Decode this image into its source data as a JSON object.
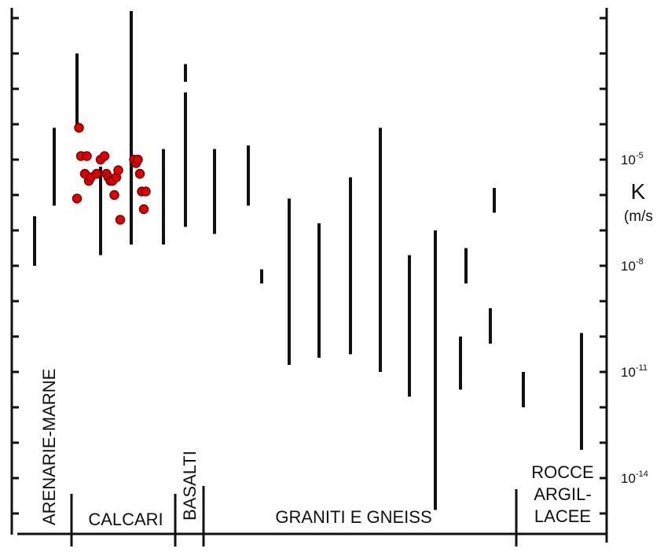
{
  "chart_data": {
    "type": "scatter",
    "title": "",
    "y_axis": {
      "title": "K",
      "unit": "(m/s",
      "scale": "log",
      "ylim_exponent": [
        -16,
        -1
      ],
      "tick_labels": [
        {
          "base": "10",
          "exp": "-5",
          "value_exp": -5
        },
        {
          "base": "10",
          "exp": "-8",
          "value_exp": -8
        },
        {
          "base": "10",
          "exp": "-11",
          "value_exp": -11
        },
        {
          "base": "10",
          "exp": "-14",
          "value_exp": -14
        }
      ]
    },
    "categories": [
      {
        "label": "ARENARIE-MARNE",
        "orientation": "vertical"
      },
      {
        "label": "CALCARI",
        "orientation": "horizontal"
      },
      {
        "label": "BASALTI",
        "orientation": "vertical"
      },
      {
        "label": "GRANITI E GNEISS",
        "orientation": "horizontal"
      },
      {
        "label": "ROCCE ARGIL-LACEE",
        "lines": [
          "ROCCE",
          "ARGIL-",
          "LACEE"
        ],
        "orientation": "horizontal"
      }
    ],
    "ranges_log10_K": [
      {
        "category": "ARENARIE-MARNE",
        "low": -8.0,
        "high": -6.6
      },
      {
        "category": "ARENARIE-MARNE",
        "low": -6.3,
        "high": -4.1
      },
      {
        "category": "CALCARI",
        "low": -4.0,
        "high": -2.0
      },
      {
        "category": "CALCARI",
        "low": -7.7,
        "high": -5.2
      },
      {
        "category": "CALCARI",
        "low": -7.4,
        "high": -0.8
      },
      {
        "category": "CALCARI",
        "low": -7.4,
        "high": -4.7
      },
      {
        "category": "BASALTI",
        "low": -2.8,
        "high": -2.3
      },
      {
        "category": "BASALTI",
        "low": -6.9,
        "high": -3.1
      },
      {
        "category": "GRANITI E GNEISS",
        "low": -7.1,
        "high": -4.7
      },
      {
        "category": "GRANITI E GNEISS",
        "low": -6.3,
        "high": -4.6
      },
      {
        "category": "GRANITI E GNEISS",
        "low": -8.5,
        "high": -8.1
      },
      {
        "category": "GRANITI E GNEISS",
        "low": -10.8,
        "high": -6.1
      },
      {
        "category": "GRANITI E GNEISS",
        "low": -10.6,
        "high": -6.8
      },
      {
        "category": "GRANITI E GNEISS",
        "low": -10.5,
        "high": -5.5
      },
      {
        "category": "GRANITI E GNEISS",
        "low": -11.0,
        "high": -4.1
      },
      {
        "category": "GRANITI E GNEISS",
        "low": -11.7,
        "high": -7.7
      },
      {
        "category": "GRANITI E GNEISS",
        "low": -14.9,
        "high": -7.0
      },
      {
        "category": "GRANITI E GNEISS",
        "low": -8.5,
        "high": -7.5
      },
      {
        "category": "GRANITI E GNEISS",
        "low": -10.2,
        "high": -9.2
      },
      {
        "category": "GRANITI E GNEISS",
        "low": -11.5,
        "high": -10.0
      },
      {
        "category": "GRANITI E GNEISS",
        "low": -6.5,
        "high": -5.8
      },
      {
        "category": "ROCCE ARGIL-LACEE",
        "low": -12.0,
        "high": -11.0
      },
      {
        "category": "ROCCE ARGIL-LACEE",
        "low": -13.2,
        "high": -9.9
      }
    ],
    "points_log10_K": [
      {
        "x_index": 1.05,
        "y": -4.1
      },
      {
        "x_index": 1.0,
        "y": -6.1
      },
      {
        "x_index": 1.1,
        "y": -4.9
      },
      {
        "x_index": 1.2,
        "y": -5.4
      },
      {
        "x_index": 1.25,
        "y": -4.9
      },
      {
        "x_index": 1.3,
        "y": -5.6
      },
      {
        "x_index": 1.35,
        "y": -5.5
      },
      {
        "x_index": 1.5,
        "y": -5.4
      },
      {
        "x_index": 1.6,
        "y": -5.0
      },
      {
        "x_index": 1.7,
        "y": -4.9
      },
      {
        "x_index": 1.75,
        "y": -5.4
      },
      {
        "x_index": 1.8,
        "y": -5.5
      },
      {
        "x_index": 1.85,
        "y": -5.6
      },
      {
        "x_index": 1.9,
        "y": -5.6
      },
      {
        "x_index": 1.95,
        "y": -6.0
      },
      {
        "x_index": 2.0,
        "y": -5.5
      },
      {
        "x_index": 2.05,
        "y": -5.3
      },
      {
        "x_index": 2.1,
        "y": -6.7
      },
      {
        "x_index": 2.45,
        "y": -5.0
      },
      {
        "x_index": 2.5,
        "y": -5.1
      },
      {
        "x_index": 2.55,
        "y": -5.0
      },
      {
        "x_index": 2.6,
        "y": -5.4
      },
      {
        "x_index": 2.65,
        "y": -5.9
      },
      {
        "x_index": 2.7,
        "y": -6.4
      },
      {
        "x_index": 2.75,
        "y": -5.9
      }
    ],
    "colors": {
      "ink": "#111111",
      "points": "#e00000",
      "point_stroke": "#7a0000"
    },
    "grid": false
  }
}
